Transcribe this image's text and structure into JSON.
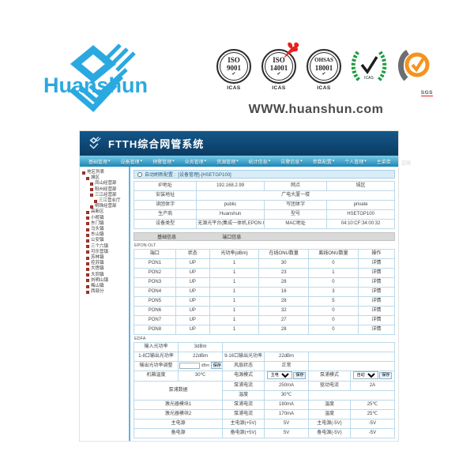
{
  "brand": {
    "name": "Huanshun",
    "website": "WWW.huanshun.com"
  },
  "badges": {
    "iso9001": {
      "line1": "ISO",
      "line2": "9001",
      "caption": "ICAS"
    },
    "iso14001": {
      "line1": "ISO",
      "line2": "14001",
      "caption": "ICAS"
    },
    "ohsas": {
      "line1": "OHSAS",
      "line2": "18001",
      "caption": "ICAS"
    },
    "wreath": {
      "caption": "ICAS"
    },
    "sgs": {
      "caption": "SGS"
    }
  },
  "app": {
    "title": "FTTH综合网管系统",
    "menu": {
      "items": [
        "基础管理",
        "设备管理",
        "预警管理",
        "业务管理",
        "资源管理",
        "统计信息",
        "告警信息",
        "参数配置",
        "个人管理",
        "主菜单",
        "注销"
      ]
    },
    "sidebar": {
      "items": [
        {
          "label": "地区列表",
          "depth": 0
        },
        {
          "label": "城区",
          "depth": 1
        },
        {
          "label": "凤山经营部",
          "depth": 2
        },
        {
          "label": "阳州经营部",
          "depth": 2
        },
        {
          "label": "三江经营部",
          "depth": 2
        },
        {
          "label": "三江营业厅",
          "depth": 3
        },
        {
          "label": "明珠经营部",
          "depth": 2
        },
        {
          "label": "高新区",
          "depth": 1
        },
        {
          "label": "小榄镇",
          "depth": 1
        },
        {
          "label": "东门镇",
          "depth": 1
        },
        {
          "label": "马头镇",
          "depth": 1
        },
        {
          "label": "东山镇",
          "depth": 1
        },
        {
          "label": "公安镇",
          "depth": 1
        },
        {
          "label": "三个六镇",
          "depth": 1
        },
        {
          "label": "可乐营镇",
          "depth": 1
        },
        {
          "label": "苏林镇",
          "depth": 1
        },
        {
          "label": "控苏镇",
          "depth": 1
        },
        {
          "label": "大悟镇",
          "depth": 1
        },
        {
          "label": "大同镇",
          "depth": 1
        },
        {
          "label": "刘明山镇",
          "depth": 1
        },
        {
          "label": "梅山镇",
          "depth": 1
        },
        {
          "label": "西部分",
          "depth": 1
        }
      ]
    },
    "page": {
      "auto_label": "自动刷新配置 :",
      "title_path": "[设备管理]-[HSETGP100]"
    },
    "device_info": {
      "ip_label": "IP地址",
      "ip": "192.168.2.99",
      "area_label": "网点",
      "area": "城区",
      "addr_label": "安装地址",
      "addr": "广电大厦一楼",
      "read_label": "读团体字",
      "read": "public",
      "write_label": "写团体字",
      "write": "private",
      "vendor_label": "生产商",
      "vendor": "Huanshun",
      "model_label": "型号",
      "model": "HSETGP100",
      "type_label": "设备类型",
      "type": "无源光平台(集成一体机,EPON OLT、EDFA)",
      "mac_label": "MAC地址",
      "mac": "04:10:CF:34:00:32"
    },
    "tabs": {
      "basic": "基础信息",
      "port": "端口信息"
    },
    "olt": {
      "section": "EPON OLT",
      "headers": [
        "端口",
        "状态",
        "光功率(dBm)",
        "在线ONU数量",
        "离线ONU数量",
        "操作"
      ],
      "action": "详情",
      "rows": [
        [
          "PON1",
          "UP",
          "1",
          "30",
          "0"
        ],
        [
          "PON2",
          "UP",
          "1",
          "23",
          "1"
        ],
        [
          "PON3",
          "UP",
          "1",
          "28",
          "0"
        ],
        [
          "PON4",
          "UP",
          "1",
          "16",
          "3"
        ],
        [
          "PON5",
          "UP",
          "1",
          "28",
          "5"
        ],
        [
          "PON6",
          "UP",
          "1",
          "32",
          "0"
        ],
        [
          "PON7",
          "UP",
          "1",
          "27",
          "0"
        ],
        [
          "PON8",
          "UP",
          "1",
          "28",
          "0"
        ]
      ]
    },
    "edfa": {
      "section": "EDFA",
      "input_power_label": "输入光功率",
      "input_power": "3dBm",
      "out18_label": "1-8口输出光功率",
      "out18": "22dBm",
      "out916_label": "9-16口输出光功率",
      "out916": "22dBm",
      "adjust_label": "输出光功率调整",
      "adjust_value": "",
      "adjust_unit": "dBm",
      "save": "保存",
      "fan_label": "风扇状态",
      "fan": "正常",
      "temp_label": "机箱温度",
      "temp": "30℃",
      "power_mode_label": "电源模式",
      "power_mode": "主电源",
      "pump_mode_label": "泵浦模式",
      "pump_mode": "自动",
      "pump_data_label": "泵浦数据",
      "pump_current_label": "泵浦电流",
      "pump_current": "250mA",
      "drive_current_label": "驱动电流",
      "drive_current": "2A",
      "temp2_label": "温度",
      "temp2": "30℃",
      "laser1_label": "激光器模块1",
      "laser1_current_label": "泵浦电流",
      "laser1_current": "180mA",
      "laser1_temp_label": "温度",
      "laser1_temp": "25℃",
      "laser2_label": "激光器模块2",
      "laser2_current_label": "泵浦电流",
      "laser2_current": "170mA",
      "laser2_temp_label": "温度",
      "laser2_temp": "25℃",
      "main_power_label": "主电源",
      "main_p5_label": "主电源(+5V)",
      "main_p5": "5V",
      "main_n5_label": "主电源(-5V)",
      "main_n5": "-5V",
      "backup_power_label": "备电源",
      "backup_p5_label": "备电源(+5V)",
      "backup_p5": "5V",
      "backup_n5_label": "备电源(-5V)",
      "backup_n5": "-5V"
    }
  }
}
